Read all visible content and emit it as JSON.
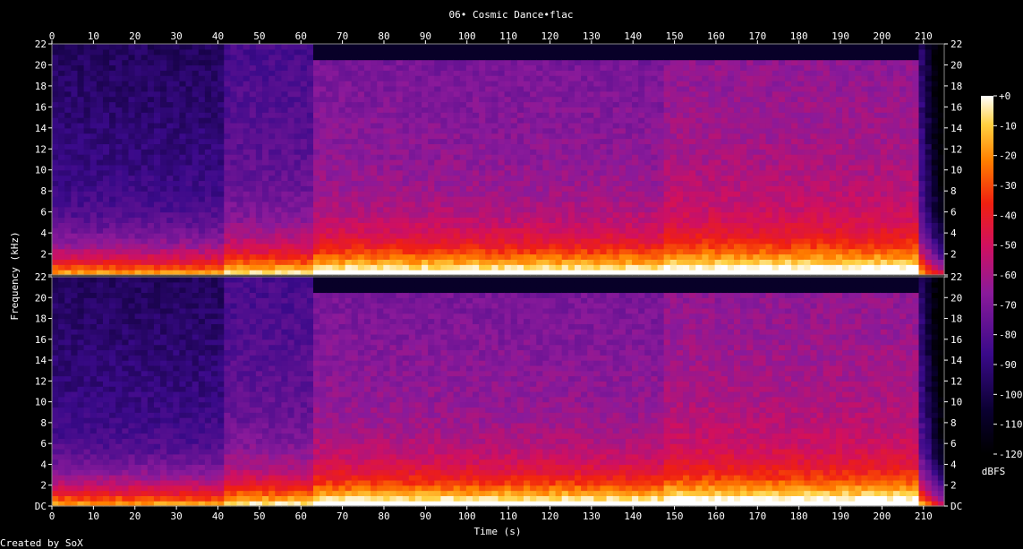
{
  "chart_data": {
    "type": "heatmap",
    "title": "06• Cosmic Dance•flac",
    "xlabel": "Time (s)",
    "ylabel": "Frequency (kHz)",
    "xlim": [
      0,
      215
    ],
    "x_ticks": [
      0,
      10,
      20,
      30,
      40,
      50,
      60,
      70,
      80,
      90,
      100,
      110,
      120,
      130,
      140,
      150,
      160,
      170,
      180,
      190,
      200,
      210
    ],
    "ylim": [
      0,
      22
    ],
    "y_ticks": [
      "DC",
      "2",
      "4",
      "6",
      "8",
      "10",
      "12",
      "14",
      "16",
      "18",
      "20",
      "22"
    ],
    "channels": 2,
    "colorbar": {
      "label": "dBFS",
      "range": [
        -120,
        0
      ],
      "ticks": [
        "+0",
        "-10",
        "-20",
        "-30",
        "-40",
        "-50",
        "-60",
        "-70",
        "-80",
        "-90",
        "-100",
        "-110",
        "-120"
      ]
    },
    "segments": [
      {
        "start": 0,
        "end": 42,
        "description_level": "low"
      },
      {
        "start": 42,
        "end": 63,
        "description_level": "medium"
      },
      {
        "start": 63,
        "end": 147,
        "description_level": "high"
      },
      {
        "start": 147,
        "end": 209,
        "description_level": "very-high"
      }
    ],
    "footer": "Created by SoX"
  }
}
